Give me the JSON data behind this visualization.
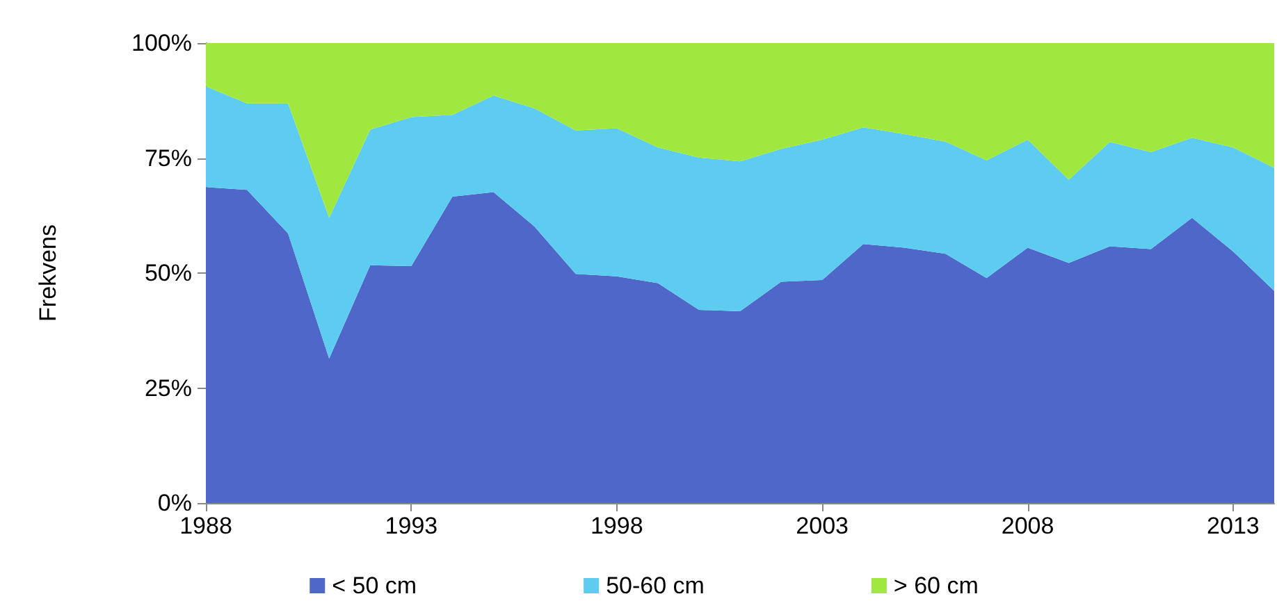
{
  "chart_data": {
    "type": "area",
    "stacked": true,
    "ylabel": "Frekvens",
    "x": [
      1988,
      1989,
      1990,
      1991,
      1992,
      1993,
      1994,
      1995,
      1996,
      1997,
      1998,
      1999,
      2000,
      2001,
      2002,
      2003,
      2004,
      2005,
      2006,
      2007,
      2008,
      2009,
      2010,
      2011,
      2012,
      2013,
      2014
    ],
    "series": [
      {
        "name": "< 50 cm",
        "color": "#4f67c8",
        "values": [
          68.7,
          68.1,
          58.6,
          31.4,
          51.7,
          51.5,
          66.6,
          67.6,
          60.1,
          49.8,
          49.3,
          47.8,
          42.0,
          41.7,
          48.1,
          48.5,
          56.3,
          55.5,
          54.2,
          48.9,
          55.5,
          52.2,
          55.8,
          55.2,
          62.0,
          54.7,
          46.1
        ]
      },
      {
        "name": "50-60 cm",
        "color": "#5ecbf1",
        "values": [
          21.9,
          18.8,
          28.3,
          30.6,
          29.5,
          32.4,
          17.8,
          21.0,
          25.7,
          31.2,
          32.2,
          29.5,
          33.1,
          32.6,
          28.9,
          30.5,
          25.4,
          24.7,
          24.4,
          25.6,
          23.5,
          18.1,
          22.7,
          21.1,
          17.4,
          22.6,
          26.8
        ]
      },
      {
        "name": "> 60 cm",
        "color": "#a0e83f",
        "values": [
          9.4,
          13.1,
          13.1,
          38.0,
          18.8,
          16.1,
          15.6,
          11.4,
          14.2,
          19.0,
          18.5,
          22.7,
          24.9,
          25.7,
          23.0,
          21.0,
          18.3,
          19.8,
          21.4,
          25.5,
          21.0,
          29.7,
          21.5,
          23.7,
          20.6,
          22.7,
          27.1
        ]
      }
    ],
    "xlim": [
      1988,
      2014
    ],
    "xticks": [
      1988,
      1993,
      1998,
      2003,
      2008,
      2013
    ],
    "ylim": [
      0,
      100
    ],
    "yticks": [
      {
        "value": 0,
        "label": "0%"
      },
      {
        "value": 25,
        "label": "25%"
      },
      {
        "value": 50,
        "label": "50%"
      },
      {
        "value": 75,
        "label": "75%"
      },
      {
        "value": 100,
        "label": "100%"
      }
    ],
    "grid": false,
    "legend": "bottom"
  }
}
